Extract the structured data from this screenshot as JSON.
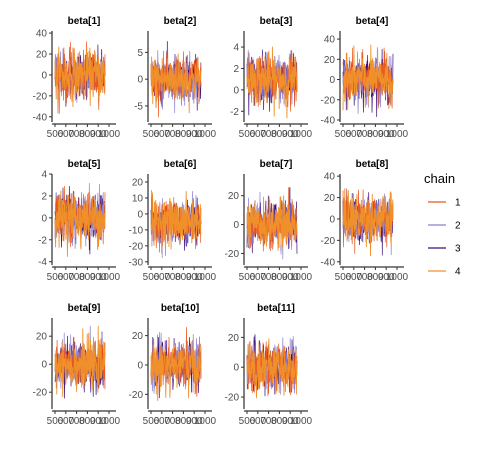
{
  "chart_data": {
    "type": "line",
    "title": "",
    "xlabel": "",
    "ylabel": "",
    "grid": false,
    "legend_position": "right",
    "x": {
      "range": [
        500,
        1000
      ],
      "tick_labels": [
        "500",
        "600",
        "700",
        "800",
        "900",
        "1000"
      ]
    },
    "legend": {
      "title": "chain",
      "entries": [
        {
          "label": "1",
          "color": "#e8571f"
        },
        {
          "label": "2",
          "color": "#8a7fd1"
        },
        {
          "label": "3",
          "color": "#3d0f7a"
        },
        {
          "label": "4",
          "color": "#f0902a"
        }
      ]
    },
    "series": [
      {
        "name": "1",
        "color": "#e8571f"
      },
      {
        "name": "2",
        "color": "#8a7fd1"
      },
      {
        "name": "3",
        "color": "#3d0f7a"
      },
      {
        "name": "4",
        "color": "#f0902a"
      }
    ],
    "panels": [
      {
        "title": "beta[1]",
        "ylim": [
          -45,
          42
        ],
        "yticks": [
          40,
          20,
          0,
          -20,
          -40
        ],
        "center": 0,
        "band_sd": 11.5
      },
      {
        "title": "beta[2]",
        "ylim": [
          -8,
          9
        ],
        "yticks": [
          5,
          0,
          -5
        ],
        "center": 0,
        "band_sd": 2.2
      },
      {
        "title": "beta[3]",
        "ylim": [
          -3,
          5.5
        ],
        "yticks": [
          4,
          2,
          0,
          -2
        ],
        "center": 1,
        "band_sd": 1.15
      },
      {
        "title": "beta[4]",
        "ylim": [
          -42,
          48
        ],
        "yticks": [
          40,
          20,
          0,
          -20,
          -40
        ],
        "center": 0,
        "band_sd": 11.5
      },
      {
        "title": "beta[5]",
        "ylim": [
          -4.3,
          4
        ],
        "yticks": [
          4,
          2,
          0,
          -2,
          -4
        ],
        "center": 0,
        "band_sd": 1.1
      },
      {
        "title": "beta[6]",
        "ylim": [
          -32,
          25
        ],
        "yticks": [
          20,
          10,
          0,
          -10,
          -20,
          -30
        ],
        "center": -5,
        "band_sd": 7
      },
      {
        "title": "beta[7]",
        "ylim": [
          -28,
          35
        ],
        "yticks": [
          20,
          0,
          -20
        ],
        "center": 0,
        "band_sd": 8
      },
      {
        "title": "beta[8]",
        "ylim": [
          -43,
          42
        ],
        "yticks": [
          40,
          20,
          0,
          -20,
          -40
        ],
        "center": 0,
        "band_sd": 11
      },
      {
        "title": "beta[9]",
        "ylim": [
          -32,
          33
        ],
        "yticks": [
          20,
          0,
          -20
        ],
        "center": 0,
        "band_sd": 8.5
      },
      {
        "title": "beta[10]",
        "ylim": [
          -30,
          32
        ],
        "yticks": [
          20,
          0,
          -20
        ],
        "center": 0,
        "band_sd": 8
      },
      {
        "title": "beta[11]",
        "ylim": [
          -28,
          33
        ],
        "yticks": [
          20,
          0,
          -20
        ],
        "center": 0,
        "band_sd": 8
      }
    ]
  }
}
